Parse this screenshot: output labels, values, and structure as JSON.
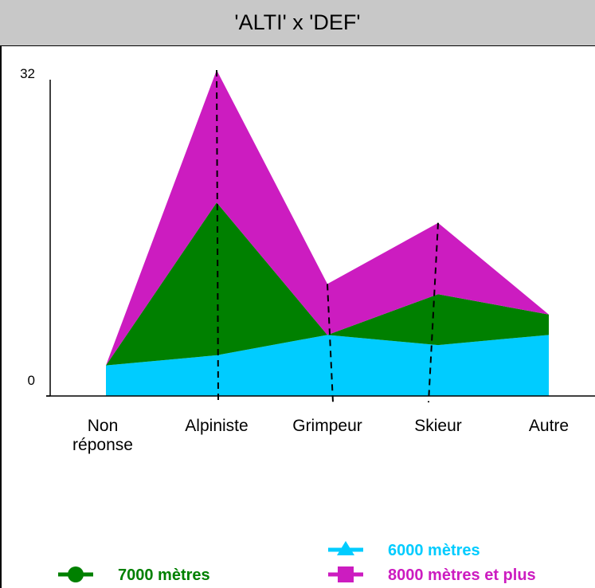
{
  "chart_data": {
    "type": "area",
    "title": "'ALTI' x 'DEF'",
    "categories": [
      "Non réponse",
      "Alpiniste",
      "Grimpeur",
      "Skieur",
      "Autre"
    ],
    "category_lines": [
      [
        "Non",
        "réponse"
      ],
      [
        "Alpiniste"
      ],
      [
        "Grimpeur"
      ],
      [
        "Skieur"
      ],
      [
        "Autre"
      ]
    ],
    "stacked": true,
    "ylim": [
      0,
      32
    ],
    "yticks": [
      "0",
      "32"
    ],
    "series": [
      {
        "name": "6000 mètres",
        "color": "#00ccff",
        "marker": "triangle",
        "values": [
          3,
          4,
          6,
          5,
          6
        ]
      },
      {
        "name": "7000 mètres",
        "color": "#008000",
        "marker": "circle",
        "values": [
          0,
          15,
          0,
          5,
          2
        ]
      },
      {
        "name": "8000 mètres et plus",
        "color": "#cc1cc0",
        "marker": "square",
        "values": [
          0,
          13,
          5,
          7,
          0
        ]
      }
    ],
    "legend_placement": "bottom"
  }
}
